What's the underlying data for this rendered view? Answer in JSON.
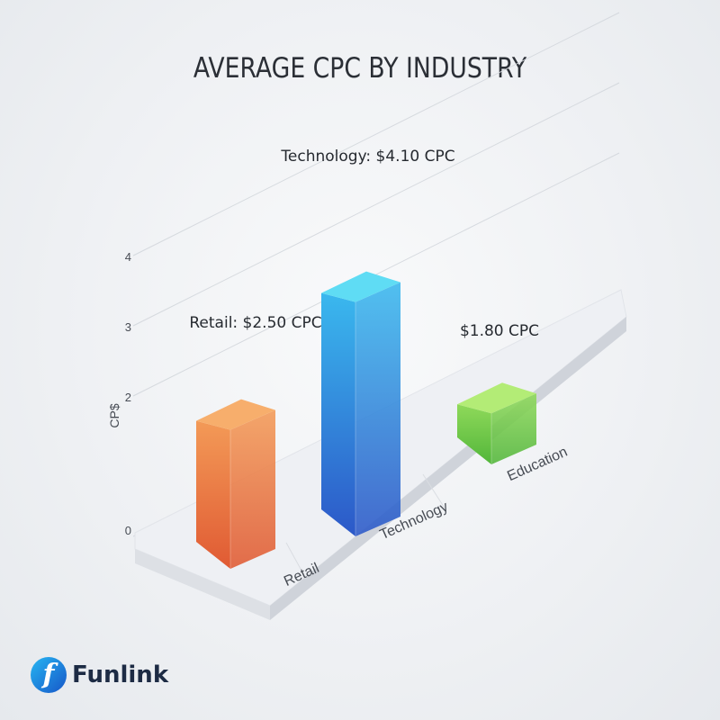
{
  "colors": {
    "retail_top": "#f7ae6c",
    "retail_front_top": "#f39a57",
    "retail_front_bottom": "#e05a33",
    "technology_top": "#5fdcf4",
    "technology_front_top": "#3ab8ee",
    "technology_front_bottom": "#2c58c8",
    "education_top": "#b3ec76",
    "education_front_top": "#8fd95a",
    "education_front_bottom": "#52b63a"
  },
  "chart_data": {
    "type": "bar",
    "style": "3d",
    "title": "AVERAGE CPC BY INDUSTRY",
    "ylabel": "CP$",
    "xlabel": "",
    "ylim": [
      0,
      4
    ],
    "yticks": [
      "0",
      "2",
      "3",
      "4"
    ],
    "grid": true,
    "categories": [
      "Retail",
      "Technology",
      "Education"
    ],
    "values": [
      2.5,
      4.1,
      1.8
    ],
    "data_labels": [
      "Retail: $2.50 CPC",
      "Technology: $4.10 CPC",
      "$1.80 CPC"
    ]
  },
  "brand": {
    "logo_icon": "funlink-f-icon",
    "name": "Funlink"
  }
}
